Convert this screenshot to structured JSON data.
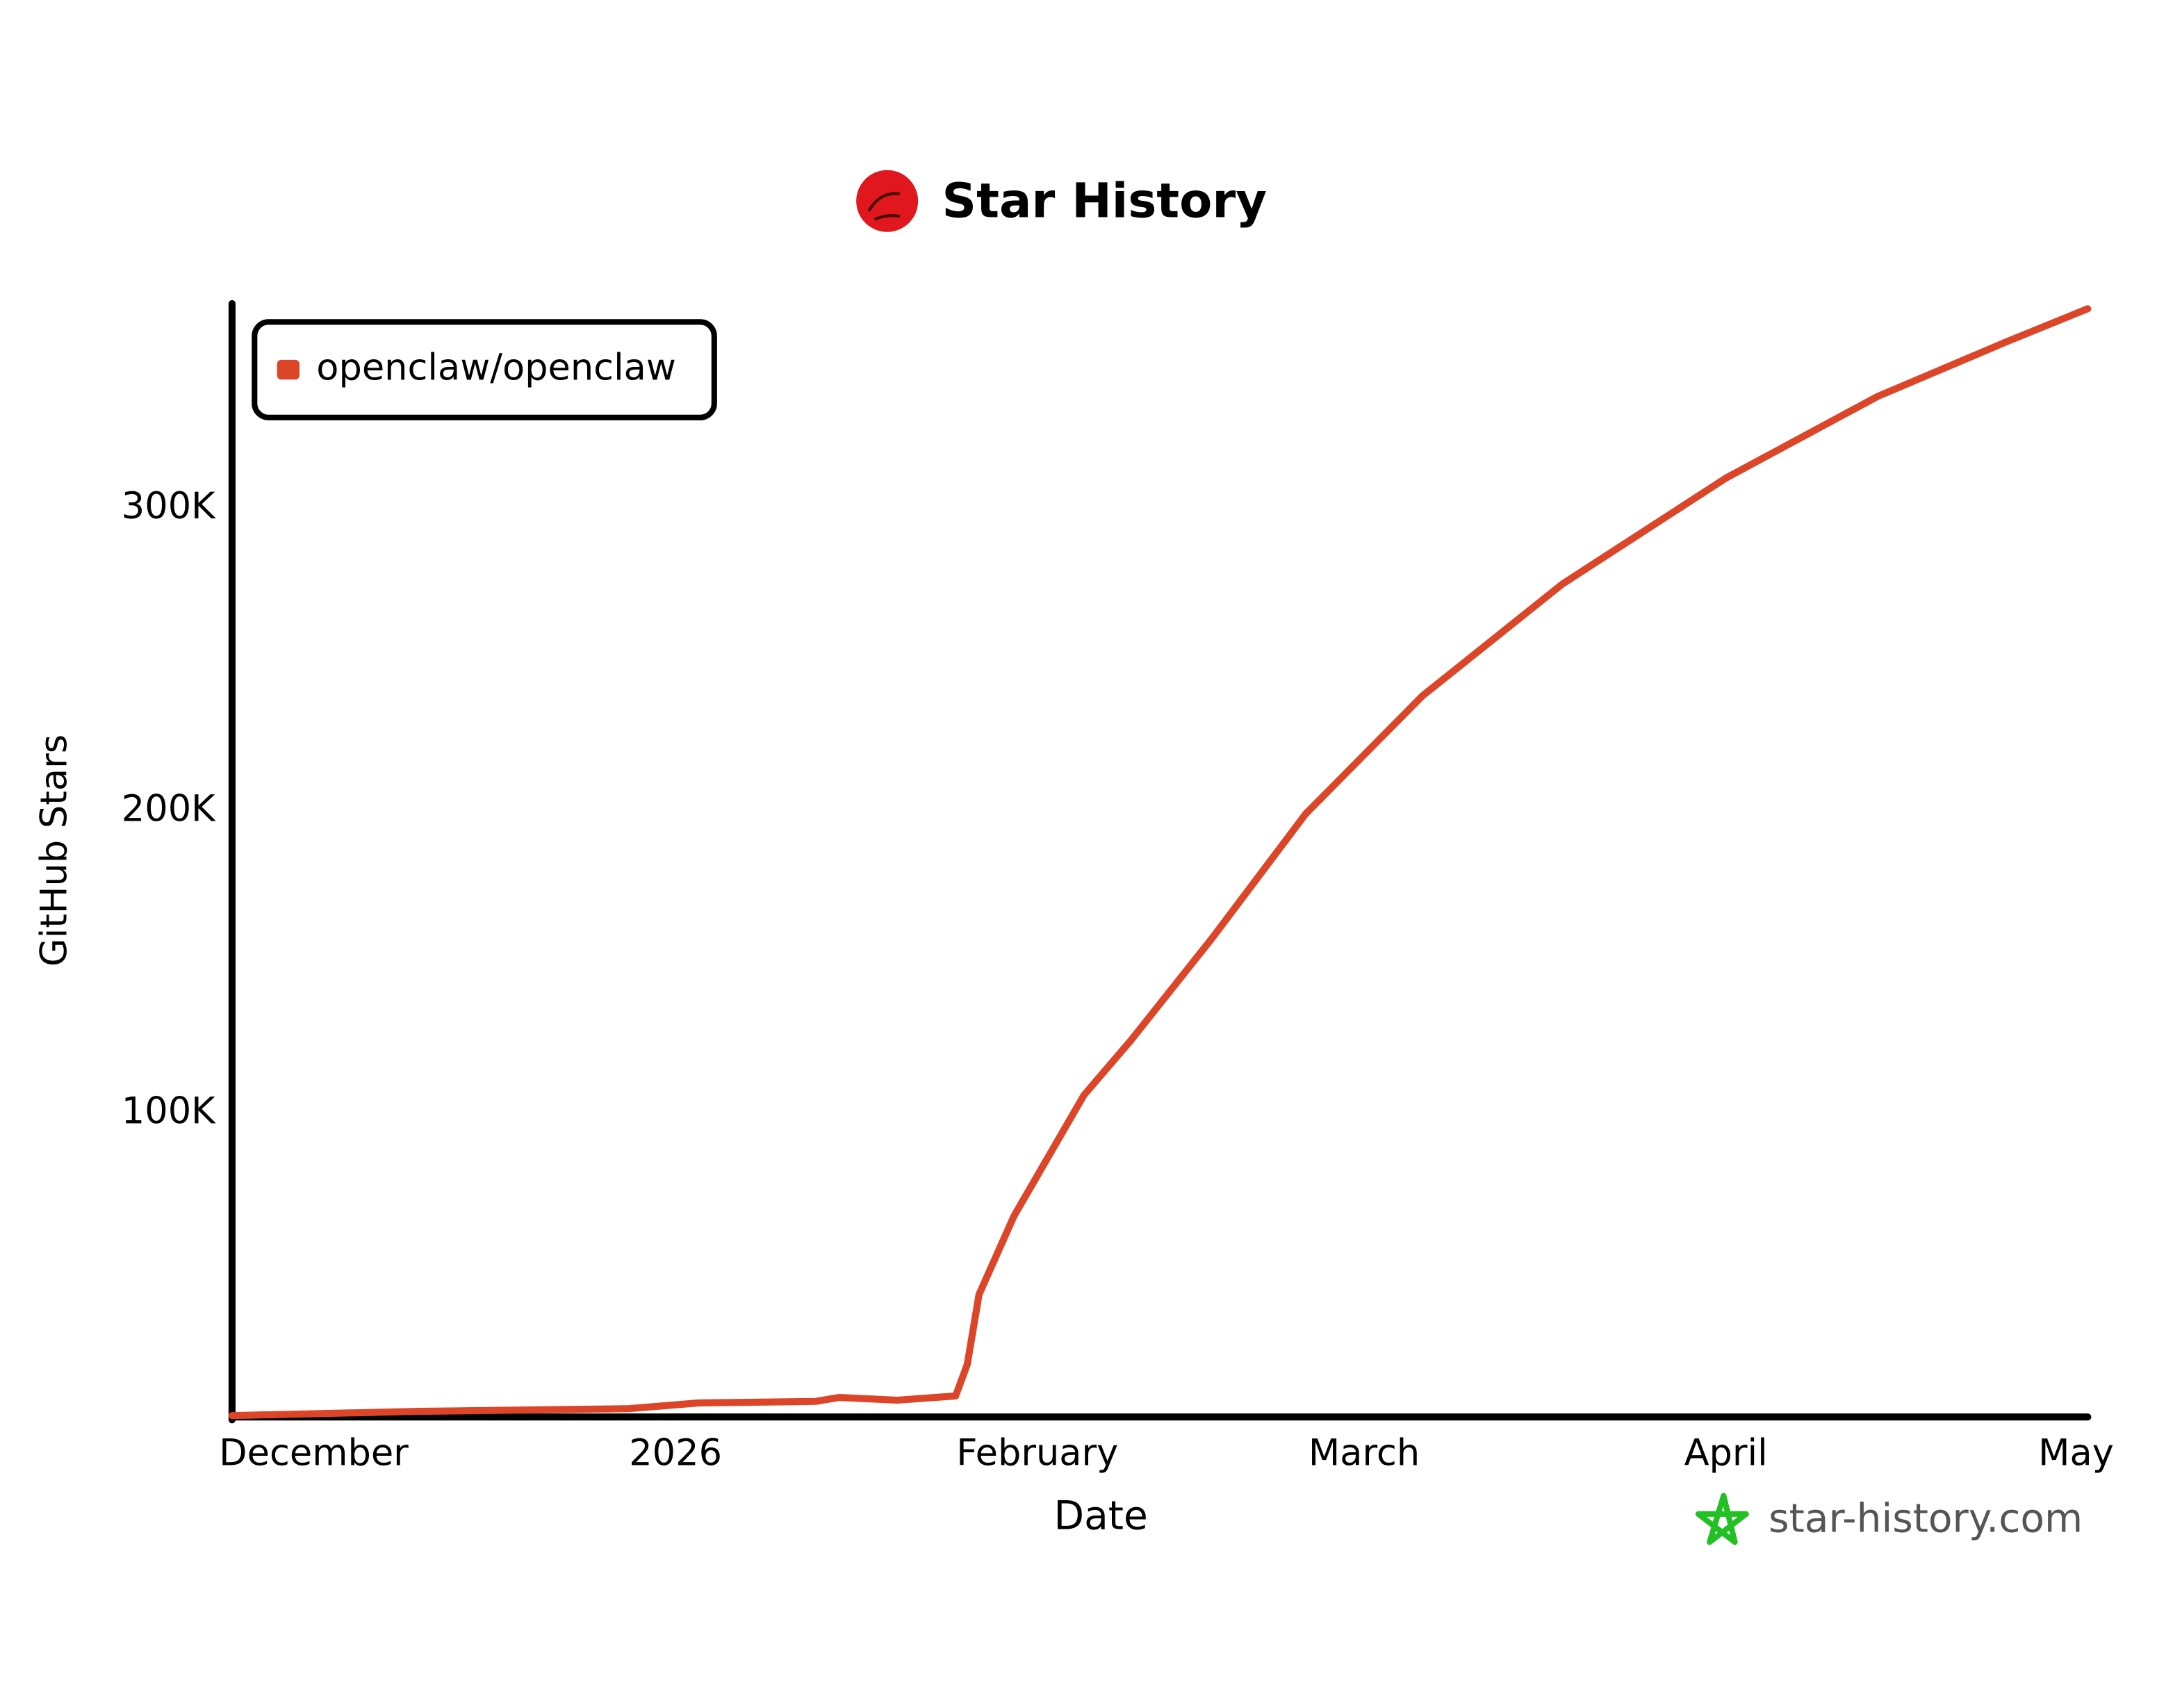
{
  "chart_data": {
    "type": "line",
    "title": "Star History",
    "x_label": "Date",
    "y_label": "GitHub Stars",
    "watermark": "star-history.com",
    "x": [
      -7,
      9,
      27,
      33,
      43,
      45,
      50,
      55,
      56,
      57,
      60,
      66,
      70,
      77,
      85,
      95,
      107,
      121,
      134,
      145,
      152
    ],
    "series": [
      {
        "name": "openclaw/openclaw",
        "color": "#dd4528",
        "values": [
          0,
          1400,
          2300,
          4200,
          4700,
          6000,
          5100,
          6500,
          17000,
          40000,
          66000,
          106000,
          124000,
          158000,
          199000,
          238000,
          275000,
          310000,
          337000,
          355000,
          366000
        ]
      }
    ],
    "xlim": [
      -7,
      152
    ],
    "xticks": [
      {
        "value": 0,
        "label": "December"
      },
      {
        "value": 31,
        "label": "2026"
      },
      {
        "value": 62,
        "label": "February"
      },
      {
        "value": 90,
        "label": "March"
      },
      {
        "value": 121,
        "label": "April"
      },
      {
        "value": 151,
        "label": "May"
      }
    ],
    "ylim": [
      0,
      370000
    ],
    "yticks": [
      {
        "value": 100000,
        "label": "100K"
      },
      {
        "value": 200000,
        "label": "200K"
      },
      {
        "value": 300000,
        "label": "300K"
      }
    ],
    "grid": false,
    "legend": "upper left"
  }
}
